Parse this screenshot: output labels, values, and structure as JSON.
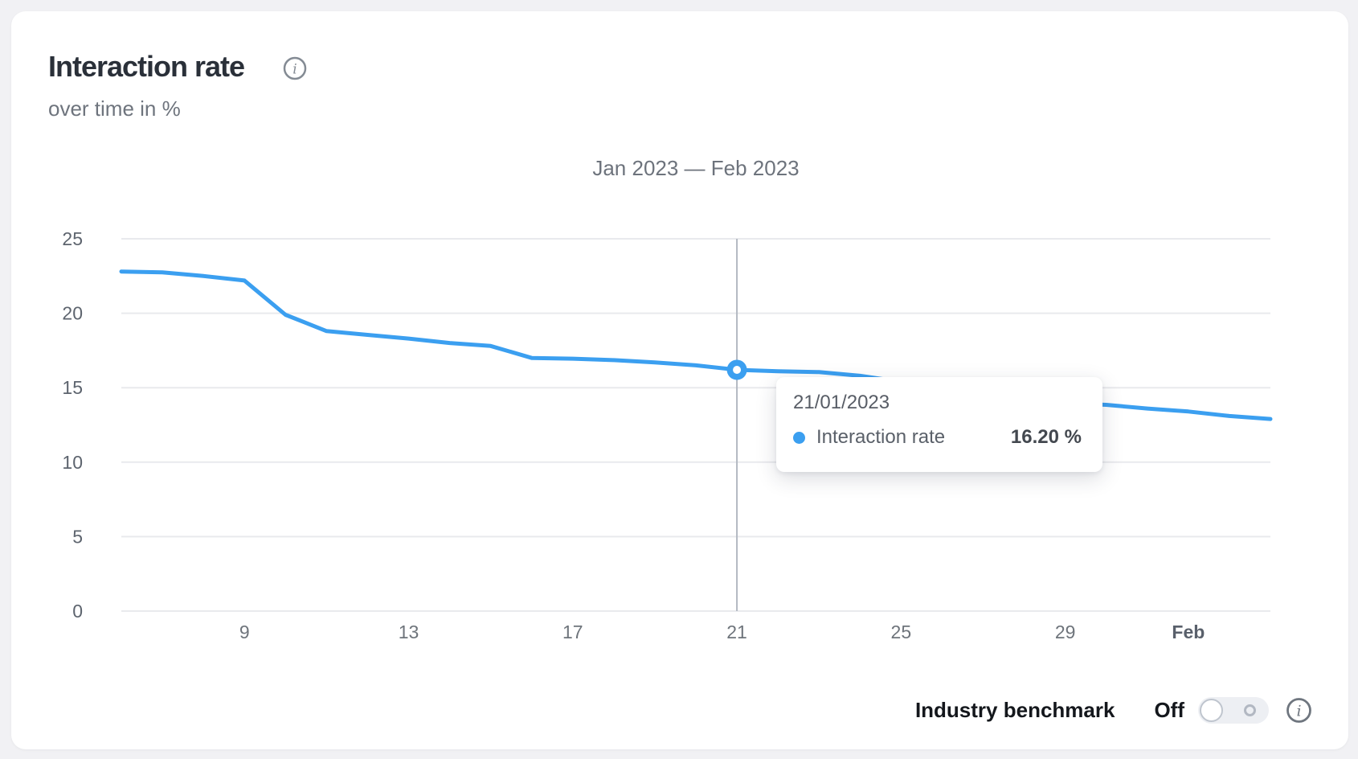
{
  "header": {
    "title": "Interaction rate",
    "subtitle": "over time in %"
  },
  "chart_data": {
    "type": "line",
    "title": "Jan 2023 — Feb 2023",
    "series_name": "Interaction rate",
    "unit": "%",
    "line_color": "#3b9ff0",
    "grid": true,
    "ylim": [
      0,
      25
    ],
    "yticks": [
      0,
      5,
      10,
      15,
      20,
      25
    ],
    "x_dates": [
      "06/01/2023",
      "07/01/2023",
      "08/01/2023",
      "09/01/2023",
      "10/01/2023",
      "11/01/2023",
      "12/01/2023",
      "13/01/2023",
      "14/01/2023",
      "15/01/2023",
      "16/01/2023",
      "17/01/2023",
      "18/01/2023",
      "19/01/2023",
      "20/01/2023",
      "21/01/2023",
      "22/01/2023",
      "23/01/2023",
      "24/01/2023",
      "25/01/2023",
      "26/01/2023",
      "27/01/2023",
      "28/01/2023",
      "29/01/2023",
      "30/01/2023",
      "31/01/2023",
      "01/02/2023",
      "02/02/2023",
      "03/02/2023"
    ],
    "values": [
      22.8,
      22.75,
      22.5,
      22.2,
      19.9,
      18.8,
      18.55,
      18.3,
      18.0,
      17.8,
      17.0,
      16.95,
      16.85,
      16.7,
      16.5,
      16.2,
      16.1,
      16.05,
      15.8,
      15.4,
      15.0,
      14.6,
      14.2,
      13.95,
      13.85,
      13.6,
      13.4,
      13.1,
      12.9
    ],
    "xticks": [
      {
        "label": "9",
        "index": 3,
        "bold": false
      },
      {
        "label": "13",
        "index": 7,
        "bold": false
      },
      {
        "label": "17",
        "index": 11,
        "bold": false
      },
      {
        "label": "21",
        "index": 15,
        "bold": false
      },
      {
        "label": "25",
        "index": 19,
        "bold": false
      },
      {
        "label": "29",
        "index": 23,
        "bold": false
      },
      {
        "label": "Feb",
        "index": 26,
        "bold": true
      }
    ],
    "highlight": {
      "index": 15,
      "date": "21/01/2023",
      "value_label": "16.20 %"
    }
  },
  "controls": {
    "benchmark_label": "Industry benchmark",
    "state_label": "Off"
  },
  "colors": {
    "line": "#3b9ff0",
    "grid": "#e9eaed",
    "crosshair": "#b3b9c2",
    "axis_label": "#5d646e",
    "x_label": "#6e747b",
    "x_label_bold": "#59606b",
    "page_bg": "#f1f1f4",
    "card_bg": "#ffffff"
  }
}
